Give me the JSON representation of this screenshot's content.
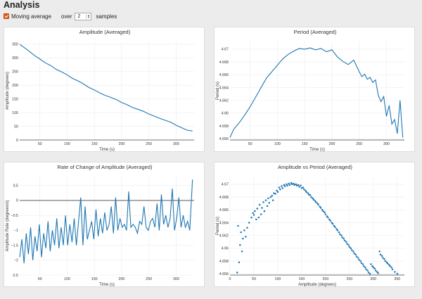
{
  "header": {
    "title": "Analysis"
  },
  "controls": {
    "moving_average_label": "Moving average",
    "over_label": "over",
    "samples_value": "2",
    "samples_label": "samples",
    "checkbox_color": "#e05a1e"
  },
  "chart_data": [
    {
      "id": "p1",
      "type": "line",
      "title": "Amplitude (Averaged)",
      "xlabel": "Time (s)",
      "ylabel": "Amplitude (degrees)",
      "xlim": [
        13,
        333
      ],
      "ylim": [
        0,
        360
      ],
      "xticks": [
        50,
        100,
        150,
        200,
        250,
        300
      ],
      "yticks": [
        0,
        50,
        100,
        150,
        200,
        250,
        300,
        350
      ],
      "ytick_labels": [
        "0",
        "50",
        "100",
        "150",
        "200",
        "250",
        "300",
        "350"
      ],
      "zero_line": false,
      "color": "#1f77b4",
      "x": [
        13,
        20,
        30,
        40,
        50,
        60,
        70,
        80,
        90,
        100,
        110,
        120,
        130,
        140,
        150,
        160,
        170,
        180,
        190,
        200,
        210,
        220,
        230,
        240,
        250,
        260,
        270,
        280,
        290,
        300,
        310,
        320,
        330
      ],
      "y": [
        350,
        340,
        325,
        309,
        296,
        282,
        272,
        258,
        249,
        238,
        225,
        216,
        205,
        192,
        183,
        172,
        163,
        156,
        148,
        137,
        129,
        119,
        112,
        105,
        95,
        87,
        79,
        72,
        65,
        54,
        45,
        36,
        33
      ]
    },
    {
      "id": "p2",
      "type": "line",
      "title": "Period (Averaged)",
      "xlabel": "Time (s)",
      "ylabel": "Period (s)",
      "xlim": [
        13,
        333
      ],
      "ylim": [
        4.6558,
        4.6712
      ],
      "xticks": [
        50,
        100,
        150,
        200,
        250,
        300
      ],
      "yticks": [
        4.656,
        4.658,
        4.66,
        4.662,
        4.664,
        4.666,
        4.668,
        4.67
      ],
      "ytick_labels": [
        "4.656",
        "4.658",
        "4.66",
        "4.662",
        "4.664",
        "4.666",
        "4.668",
        "4.67"
      ],
      "zero_line": false,
      "color": "#1f77b4",
      "x": [
        13,
        20,
        30,
        40,
        50,
        60,
        70,
        80,
        90,
        100,
        110,
        120,
        130,
        140,
        150,
        160,
        170,
        180,
        190,
        200,
        210,
        220,
        230,
        240,
        250,
        255,
        260,
        265,
        270,
        275,
        280,
        285,
        290,
        295,
        300,
        305,
        310,
        315,
        320,
        325,
        330
      ],
      "y": [
        4.6562,
        4.6575,
        4.6585,
        4.6597,
        4.661,
        4.6625,
        4.664,
        4.6655,
        4.6665,
        4.6675,
        4.6685,
        4.6692,
        4.6697,
        4.6701,
        4.67,
        4.6702,
        4.6699,
        4.6701,
        4.6696,
        4.6699,
        4.6688,
        4.6681,
        4.6676,
        4.6683,
        4.6665,
        4.6657,
        4.6661,
        4.6653,
        4.6656,
        4.6648,
        4.6652,
        4.6628,
        4.6618,
        4.6626,
        4.6595,
        4.6612,
        4.6583,
        4.659,
        4.6568,
        4.662,
        4.6562
      ]
    },
    {
      "id": "p3",
      "type": "line",
      "title": "Rate of Change of Amplitude (Averaged)",
      "xlabel": "Time (s)",
      "ylabel": "Amplitude Rate (degrees/s)",
      "xlim": [
        13,
        333
      ],
      "ylim": [
        -2.5,
        0.8
      ],
      "xticks": [
        50,
        100,
        150,
        200,
        250,
        300
      ],
      "yticks": [
        -2.5,
        -2,
        -1.5,
        -1,
        -0.5,
        0,
        0.5
      ],
      "ytick_labels": [
        "-2.5",
        "−2",
        "−1.5",
        "−1",
        "−0.5",
        "0",
        "0.5"
      ],
      "zero_line": true,
      "color": "#1f77b4",
      "x": [
        13,
        17,
        21,
        25,
        29,
        33,
        37,
        41,
        45,
        49,
        53,
        57,
        61,
        65,
        69,
        73,
        77,
        81,
        85,
        89,
        93,
        97,
        101,
        105,
        109,
        113,
        117,
        121,
        125,
        129,
        133,
        137,
        141,
        145,
        149,
        153,
        157,
        161,
        165,
        169,
        173,
        177,
        181,
        185,
        189,
        193,
        197,
        201,
        205,
        209,
        213,
        217,
        221,
        225,
        229,
        233,
        237,
        241,
        245,
        249,
        253,
        257,
        261,
        265,
        269,
        273,
        277,
        281,
        285,
        289,
        293,
        297,
        301,
        305,
        309,
        313,
        317,
        321,
        325,
        330
      ],
      "y": [
        -1.9,
        -1.3,
        -2.1,
        -1.1,
        -1.8,
        -0.9,
        -2.0,
        -1.2,
        -1.7,
        -0.8,
        -1.9,
        -1.1,
        -1.6,
        -0.7,
        -1.7,
        -1.0,
        -1.5,
        -0.6,
        -1.6,
        -0.9,
        -1.5,
        -0.5,
        -1.5,
        -0.8,
        -1.4,
        -0.6,
        -1.5,
        -0.7,
        0.1,
        -1.5,
        -0.2,
        -1.3,
        -1.0,
        -0.7,
        -1.3,
        -0.3,
        -1.2,
        -0.6,
        -1.1,
        -0.4,
        -1.0,
        -0.8,
        -0.2,
        -1.1,
        0.1,
        -1.0,
        -0.6,
        -0.9,
        -0.8,
        -1.0,
        0.3,
        -0.9,
        -0.8,
        -0.9,
        -1.1,
        -0.7,
        -0.8,
        -0.2,
        -0.9,
        -1.0,
        -0.7,
        -0.6,
        -0.9,
        -0.1,
        -1.0,
        0.2,
        -0.8,
        -0.5,
        -0.9,
        -0.6,
        0.4,
        -1.0,
        -0.6,
        0.1,
        -0.9,
        -0.5,
        -0.9,
        -0.7,
        -1.0,
        0.7
      ]
    },
    {
      "id": "p4",
      "type": "scatter",
      "title": "Amplitude vs Period (Averaged)",
      "xlabel": "Amplitude (degrees)",
      "ylabel": "Period (s)",
      "xlim": [
        0,
        365
      ],
      "ylim": [
        4.6558,
        4.6712
      ],
      "xticks": [
        0,
        50,
        100,
        150,
        200,
        250,
        300,
        350
      ],
      "yticks": [
        4.656,
        4.658,
        4.66,
        4.662,
        4.664,
        4.666,
        4.668,
        4.67
      ],
      "ytick_labels": [
        "4.656",
        "4.658",
        "4.66",
        "4.662",
        "4.664",
        "4.666",
        "4.668",
        "4.67"
      ],
      "zero_line": false,
      "color": "#1f77b4",
      "x": [
        15,
        17,
        19,
        21,
        23,
        25,
        27,
        30,
        33,
        36,
        40,
        45,
        48,
        50,
        52,
        55,
        57,
        60,
        62,
        65,
        67,
        70,
        72,
        75,
        78,
        80,
        82,
        85,
        88,
        90,
        92,
        95,
        98,
        100,
        103,
        105,
        108,
        110,
        113,
        115,
        118,
        120,
        123,
        125,
        128,
        130,
        133,
        135,
        138,
        140,
        143,
        145,
        148,
        150,
        153,
        155,
        158,
        160,
        163,
        165,
        168,
        170,
        173,
        175,
        178,
        180,
        183,
        185,
        188,
        190,
        193,
        195,
        198,
        200,
        203,
        205,
        208,
        210,
        213,
        215,
        218,
        220,
        223,
        225,
        228,
        230,
        233,
        235,
        238,
        240,
        243,
        245,
        248,
        250,
        253,
        255,
        258,
        260,
        263,
        265,
        268,
        270,
        273,
        275,
        278,
        280,
        283,
        285,
        288,
        290,
        293,
        295,
        298,
        300,
        303,
        305,
        308,
        310,
        313,
        315,
        318,
        320,
        323,
        325,
        328,
        330,
        333,
        335,
        338,
        340,
        345,
        350
      ],
      "y": [
        4.6562,
        4.6635,
        4.6578,
        4.6605,
        4.6625,
        4.6595,
        4.6615,
        4.6628,
        4.6618,
        4.6632,
        4.664,
        4.6648,
        4.6655,
        4.6652,
        4.6658,
        4.6645,
        4.6662,
        4.6648,
        4.6668,
        4.6653,
        4.6663,
        4.6672,
        4.6658,
        4.6675,
        4.6666,
        4.6678,
        4.6671,
        4.668,
        4.6682,
        4.6675,
        4.6686,
        4.6685,
        4.669,
        4.6688,
        4.6695,
        4.6692,
        4.6697,
        4.6694,
        4.6699,
        4.6697,
        4.67,
        4.6698,
        4.6701,
        4.6699,
        4.6702,
        4.67,
        4.6701,
        4.6699,
        4.67,
        4.6698,
        4.6699,
        4.6696,
        4.6698,
        4.6694,
        4.6695,
        4.6692,
        4.669,
        4.6688,
        4.6686,
        4.6684,
        4.6683,
        4.668,
        4.6678,
        4.6676,
        4.6674,
        4.6672,
        4.667,
        4.6668,
        4.6665,
        4.6663,
        4.666,
        4.6658,
        4.6656,
        4.6653,
        4.665,
        4.6648,
        4.6645,
        4.6643,
        4.664,
        4.6638,
        4.6635,
        4.6633,
        4.663,
        4.6628,
        4.6625,
        4.6622,
        4.662,
        4.6617,
        4.6615,
        4.6612,
        4.661,
        4.6607,
        4.6605,
        4.6602,
        4.66,
        4.6597,
        4.6595,
        4.6592,
        4.659,
        4.6587,
        4.6585,
        4.6582,
        4.658,
        4.6577,
        4.6575,
        4.6572,
        4.657,
        4.6567,
        4.6565,
        4.6562,
        4.656,
        4.6575,
        4.6572,
        4.657,
        4.6568,
        4.6565,
        4.6563,
        4.6561,
        4.6595,
        4.659,
        4.6588,
        4.6585,
        4.6583,
        4.658,
        4.6578,
        4.6576,
        4.6574,
        4.6572,
        4.657,
        4.6567,
        4.6563,
        4.656
      ]
    }
  ]
}
